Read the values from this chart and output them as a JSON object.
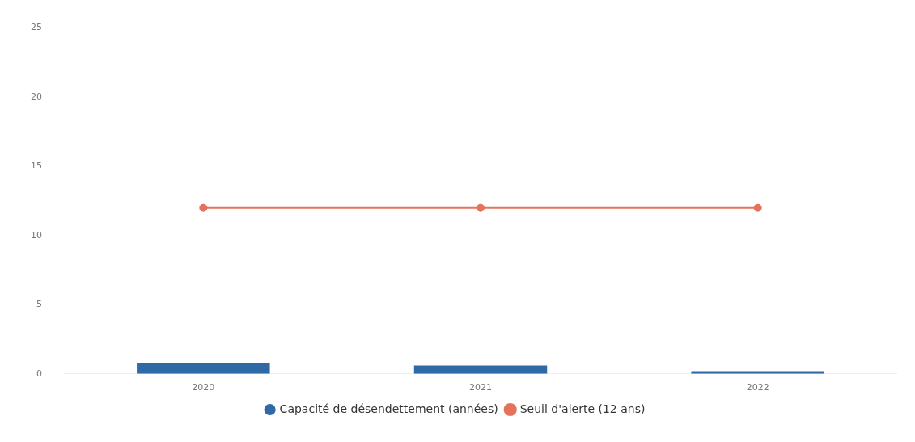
{
  "chart_data": {
    "type": "bar",
    "categories": [
      "2020",
      "2021",
      "2022"
    ],
    "series": [
      {
        "name": "Capacité de désendettement (années)",
        "color": "#2f69a6",
        "values": [
          0.8,
          0.6,
          0.2
        ]
      },
      {
        "name": "Seuil d'alerte (12 ans)",
        "type": "line",
        "color": "#e5735c",
        "values": [
          12,
          12,
          12
        ],
        "marker": "circle"
      }
    ],
    "ylim": [
      0,
      25
    ],
    "yticks": [
      0,
      5,
      10,
      15,
      20,
      25
    ],
    "grid": false,
    "legend": "bottom"
  }
}
